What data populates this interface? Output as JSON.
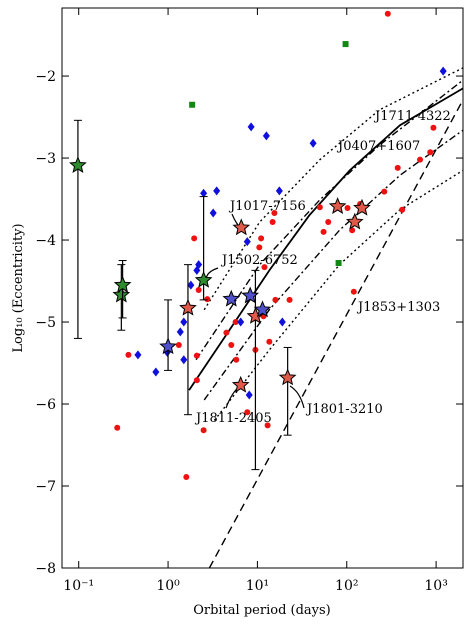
{
  "chart_data": {
    "type": "scatter",
    "xlabel": "Orbital period (days)",
    "ylabel": "Log₁₀ (Eccentricity)",
    "xscale": "log",
    "xlim": [
      0.065,
      2000
    ],
    "ylim": [
      -8,
      -1.17
    ],
    "xticks": [
      {
        "value": 0.1,
        "label": "10⁻¹"
      },
      {
        "value": 1,
        "label": "10⁰"
      },
      {
        "value": 10,
        "label": "10¹"
      },
      {
        "value": 100,
        "label": "10²"
      },
      {
        "value": 1000,
        "label": "10³"
      }
    ],
    "yticks": [
      {
        "value": -2,
        "label": "−2"
      },
      {
        "value": -3,
        "label": "−3"
      },
      {
        "value": -4,
        "label": "−4"
      },
      {
        "value": -5,
        "label": "−5"
      },
      {
        "value": -6,
        "label": "−6"
      },
      {
        "value": -7,
        "label": "−7"
      },
      {
        "value": -8,
        "label": "−8"
      }
    ],
    "series": [
      {
        "marker": "circle",
        "color": "#ee1111",
        "x": [
          288,
          933,
          661,
          372,
          263,
          417,
          141,
          102,
          50,
          62,
          115,
          55,
          120,
          15.5,
          14.8,
          11,
          10.5,
          12,
          1.96,
          2.2,
          2.75,
          5.7,
          4.5,
          5.1,
          9.5,
          15.9,
          22.9,
          11.7,
          13.6,
          5.8,
          2.1,
          2.1,
          2.5,
          0.36,
          0.27,
          1.6,
          7.7,
          13,
          1.32,
          860
        ],
        "y": [
          -1.24,
          -2.63,
          -3.02,
          -3.12,
          -3.41,
          -3.63,
          -3.56,
          -3.61,
          -3.6,
          -3.78,
          -3.88,
          -3.9,
          -4.63,
          -3.67,
          -3.78,
          -3.98,
          -4.09,
          -4.33,
          -3.98,
          -4.61,
          -4.72,
          -5,
          -5.13,
          -5.28,
          -5.34,
          -4.73,
          -4.73,
          -4.93,
          -5.24,
          -5.46,
          -5.41,
          -5.71,
          -6.32,
          -5.4,
          -6.29,
          -6.89,
          -6.1,
          -6.26,
          -5.28,
          -2.93
        ]
      },
      {
        "marker": "diamond",
        "color": "#1010dd",
        "x": [
          1200,
          42,
          8.5,
          12.6,
          17.6,
          3.5,
          2.5,
          3.2,
          7.7,
          2.2,
          2.1,
          1.8,
          1.5,
          1.37,
          0.98,
          0.46,
          0.73,
          1.5,
          19,
          6.5,
          8.1
        ],
        "y": [
          -1.94,
          -2.82,
          -2.62,
          -2.73,
          -3.4,
          -3.4,
          -3.43,
          -3.67,
          -4.02,
          -4.3,
          -4.37,
          -4.55,
          -5,
          -5.12,
          -5.37,
          -5.4,
          -5.61,
          -5.46,
          -5,
          -5,
          -5.89
        ]
      },
      {
        "marker": "square",
        "color": "#118811",
        "x": [
          97,
          1.86,
          81
        ],
        "y": [
          -1.61,
          -2.35,
          -4.28
        ]
      },
      {
        "marker": "star",
        "color": "#2e8b2e",
        "x": [
          0.098,
          0.3,
          0.31,
          2.5
        ],
        "y": [
          -3.09,
          -4.67,
          -4.55,
          -4.49
        ],
        "err_plus": [
          0.55,
          0.37,
          0.3,
          1.02
        ],
        "err_minus": [
          2.11,
          0.43,
          0.4,
          0.24
        ]
      },
      {
        "marker": "star",
        "color": "#e05a4a",
        "x": [
          6.6,
          1.67,
          6.5,
          9.5,
          21.8,
          79,
          123,
          148
        ],
        "y": [
          -3.85,
          -4.83,
          -5.77,
          -4.93,
          -5.68,
          -3.59,
          -3.78,
          -3.61
        ],
        "err_plus": [
          null,
          0.53,
          null,
          0.56,
          0.37,
          null,
          null,
          null
        ],
        "err_minus": [
          null,
          1.3,
          null,
          1.87,
          0.7,
          null,
          null,
          null
        ]
      },
      {
        "marker": "star",
        "color": "#5050cc",
        "x": [
          1,
          5.1,
          8.3,
          11.4
        ],
        "y": [
          -5.3,
          -4.72,
          -4.68,
          -4.85
        ],
        "err_plus": [
          0.57,
          null,
          null,
          null
        ],
        "err_minus": [
          0.29,
          null,
          null,
          null
        ]
      }
    ],
    "lines": [
      {
        "style": "solid",
        "x": [
          1.72,
          4.85,
          13.6,
          38,
          108,
          394,
          2000
        ],
        "y": [
          -5.83,
          -5.1,
          -4.37,
          -3.7,
          -3.15,
          -2.6,
          -2.15
        ]
      },
      {
        "style": "dashdot",
        "x": [
          2.06,
          10.6,
          50,
          234,
          2000
        ],
        "y": [
          -5.46,
          -4.3,
          -3.51,
          -2.84,
          -2.05
        ]
      },
      {
        "style": "dotted",
        "x": [
          2.54,
          10.6,
          50,
          234,
          2000
        ],
        "y": [
          -4.85,
          -3.78,
          -3.02,
          -2.41,
          -1.9
        ]
      },
      {
        "style": "dashdot",
        "x": [
          2.54,
          13.6,
          83,
          394,
          2000
        ],
        "y": [
          -5.95,
          -4.85,
          -3.88,
          -3.21,
          -2.66
        ]
      },
      {
        "style": "dotted",
        "x": [
          3.3,
          13.6,
          83,
          394,
          2000
        ],
        "y": [
          -6.2,
          -5.34,
          -4.3,
          -3.63,
          -3.15
        ]
      },
      {
        "style": "dashed",
        "x": [
          2.9,
          2000
        ],
        "y": [
          -8,
          -2.29
        ]
      }
    ],
    "annotations": [
      "J1711-4322",
      "J0407+1607",
      "J1017-7156",
      "J1502-6752",
      "J1853+1303",
      "J1811-2405",
      "J1801-3210"
    ]
  }
}
